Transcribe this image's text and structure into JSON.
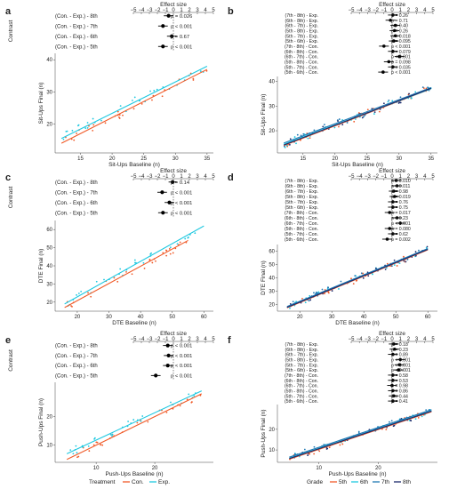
{
  "figure": {
    "colors": {
      "orange": "#f05a28",
      "cyan": "#1ec8e0",
      "blue": "#1f78b4",
      "navy": "#1b2a6b",
      "black": "#000000"
    }
  },
  "chart_data": [
    {
      "id": "a",
      "type": "scatter",
      "letter": "a",
      "forest": {
        "title": "Effect size",
        "ylabel": "Contrast",
        "xlim": [
          -5,
          5
        ],
        "ticks": [
          "−5",
          "−4",
          "−3",
          "−2",
          "−1",
          "0",
          "1",
          "2",
          "3",
          "4",
          "5"
        ],
        "rows": [
          {
            "label": "(Con. - Exp.) - 8th",
            "est": -0.6,
            "lo": -1.2,
            "hi": 0.0,
            "p": "p =  0.026"
          },
          {
            "label": "(Con. - Exp.) - 7th",
            "est": -1.3,
            "lo": -1.9,
            "hi": -0.7,
            "p": "p < 0.001"
          },
          {
            "label": "(Con. - Exp.) - 6th",
            "est": -0.2,
            "lo": -0.8,
            "hi": 0.4,
            "p": "p =  0.67"
          },
          {
            "label": "(Con. - Exp.) - 5th",
            "est": -1.3,
            "lo": -1.9,
            "hi": -0.7,
            "p": "p < 0.001"
          }
        ]
      },
      "scatter": {
        "xlabel": "Sit-Ups Baseline (n)",
        "ylabel": "Sit-Ups Final (n)",
        "xlim": [
          11,
          36
        ],
        "ylim": [
          11,
          42
        ],
        "xticks": [
          "15",
          "20",
          "25",
          "30",
          "35"
        ],
        "yticks": [
          "20",
          "30",
          "40"
        ],
        "series": [
          {
            "color": "orange",
            "line": [
              [
                12,
                14
              ],
              [
                35,
                37
              ]
            ]
          },
          {
            "color": "cyan",
            "line": [
              [
                12,
                15.5
              ],
              [
                35,
                38
              ]
            ]
          }
        ]
      }
    },
    {
      "id": "b",
      "type": "scatter",
      "letter": "b",
      "forest": {
        "title": "Effect size",
        "xlim": [
          -5,
          5
        ],
        "ticks": [
          "−5",
          "−4",
          "−3",
          "−2",
          "−1",
          "0",
          "1",
          "2",
          "3",
          "4",
          "5"
        ],
        "rows": [
          {
            "label": "(7th - 8th) - Exp.",
            "est": 0.1,
            "lo": -0.5,
            "hi": 0.7,
            "p": "p = 0.26"
          },
          {
            "label": "(6th - 8th) - Exp.",
            "est": -0.2,
            "lo": -0.8,
            "hi": 0.4,
            "p": "p = 0.71"
          },
          {
            "label": "(6th - 7th) - Exp.",
            "est": 0.4,
            "lo": -0.2,
            "hi": 1.0,
            "p": "p = 0.40"
          },
          {
            "label": "(5th - 8th) - Exp.",
            "est": 0.3,
            "lo": -0.3,
            "hi": 0.9,
            "p": "p = 0.26"
          },
          {
            "label": "(5th - 7th) - Exp.",
            "est": 0.4,
            "lo": -0.2,
            "hi": 1.0,
            "p": "p = 0.018"
          },
          {
            "label": "(5th - 6th) - Exp.",
            "est": 0.2,
            "lo": -0.4,
            "hi": 0.8,
            "p": "p = 0.095"
          },
          {
            "label": "(7th - 8th) - Con.",
            "est": -1.0,
            "lo": -1.6,
            "hi": -0.4,
            "p": "p < 0.001"
          },
          {
            "label": "(6th - 8th) - Con.",
            "est": 0.1,
            "lo": -0.5,
            "hi": 0.7,
            "p": "p = 0.079"
          },
          {
            "label": "(6th - 7th) - Con.",
            "est": 0.9,
            "lo": 0.3,
            "hi": 1.5,
            "p": "p < 0.001"
          },
          {
            "label": "(5th - 8th) - Con.",
            "est": -0.4,
            "lo": -1.0,
            "hi": 0.2,
            "p": "p = 0.098"
          },
          {
            "label": "(5th - 7th) - Con.",
            "est": 0.1,
            "lo": -0.5,
            "hi": 0.7,
            "p": "p = 0.035"
          },
          {
            "label": "(5th - 6th) - Con.",
            "est": -1.1,
            "lo": -1.7,
            "hi": -0.5,
            "p": "p < 0.001"
          }
        ]
      },
      "scatter": {
        "xlabel": "Sit-Ups Baseline (n)",
        "ylabel": "Sit-Ups Final (n)",
        "xlim": [
          11,
          36
        ],
        "ylim": [
          11,
          42
        ],
        "xticks": [
          "15",
          "20",
          "25",
          "30",
          "35"
        ],
        "yticks": [
          "20",
          "30",
          "40"
        ],
        "series": [
          {
            "color": "orange",
            "line": [
              [
                12,
                14
              ],
              [
                35,
                37
              ]
            ]
          },
          {
            "color": "cyan",
            "line": [
              [
                12,
                14.5
              ],
              [
                35,
                37
              ]
            ]
          },
          {
            "color": "blue",
            "line": [
              [
                12,
                15
              ],
              [
                35,
                37.5
              ]
            ]
          },
          {
            "color": "navy",
            "line": [
              [
                12,
                14.2
              ],
              [
                35,
                37.2
              ]
            ]
          }
        ]
      }
    },
    {
      "id": "c",
      "type": "scatter",
      "letter": "c",
      "forest": {
        "title": "Effect size",
        "ylabel": "Contrast",
        "xlim": [
          -5,
          5
        ],
        "ticks": [
          "−5",
          "−4",
          "−3",
          "−2",
          "−1",
          "0",
          "1",
          "2",
          "3",
          "4",
          "5"
        ],
        "rows": [
          {
            "label": "(Con. - Exp.) - 8th",
            "est": -0.1,
            "lo": -0.6,
            "hi": 0.4,
            "p": "p =  0.14"
          },
          {
            "label": "(Con. - Exp.) - 7th",
            "est": -1.4,
            "lo": -2.0,
            "hi": -0.8,
            "p": "p < 0.001"
          },
          {
            "label": "(Con. - Exp.) - 6th",
            "est": -0.5,
            "lo": -1.1,
            "hi": 0.1,
            "p": "p < 0.001"
          },
          {
            "label": "(Con. - Exp.) - 5th",
            "est": -1.3,
            "lo": -1.9,
            "hi": -0.7,
            "p": "p < 0.001"
          }
        ]
      },
      "scatter": {
        "xlabel": "DTE Baseline (n)",
        "ylabel": "DTE Final (n)",
        "xlim": [
          13,
          63
        ],
        "ylim": [
          15,
          65
        ],
        "xticks": [
          "20",
          "30",
          "40",
          "50",
          "60"
        ],
        "yticks": [
          "20",
          "30",
          "40",
          "50",
          "60"
        ],
        "series": [
          {
            "color": "orange",
            "line": [
              [
                16,
                17
              ],
              [
                55,
                54
              ]
            ]
          },
          {
            "color": "cyan",
            "line": [
              [
                16,
                19
              ],
              [
                60,
                62
              ]
            ]
          }
        ]
      }
    },
    {
      "id": "d",
      "type": "scatter",
      "letter": "d",
      "forest": {
        "title": "Effect size",
        "xlim": [
          -5,
          5
        ],
        "ticks": [
          "−5",
          "−4",
          "−3",
          "−2",
          "−1",
          "0",
          "1",
          "2",
          "3",
          "4",
          "5"
        ],
        "rows": [
          {
            "label": "(7th - 8th) - Exp.",
            "est": 0.5,
            "lo": -0.1,
            "hi": 1.1,
            "p": "p = 0.010"
          },
          {
            "label": "(6th - 8th) - Exp.",
            "est": 0.6,
            "lo": 0.0,
            "hi": 1.2,
            "p": "p = 0.011"
          },
          {
            "label": "(6th - 7th) - Exp.",
            "est": 0.2,
            "lo": -0.4,
            "hi": 0.8,
            "p": "p = 0.98"
          },
          {
            "label": "(5th - 8th) - Exp.",
            "est": 0.3,
            "lo": -0.3,
            "hi": 0.9,
            "p": "p = 0.019"
          },
          {
            "label": "(5th - 7th) - Exp.",
            "est": 0.1,
            "lo": -0.5,
            "hi": 0.7,
            "p": "p = 0.76"
          },
          {
            "label": "(5th - 6th) - Exp.",
            "est": 0.1,
            "lo": -0.5,
            "hi": 0.7,
            "p": "p = 0.75"
          },
          {
            "label": "(7th - 8th) - Con.",
            "est": -0.3,
            "lo": -0.9,
            "hi": 0.3,
            "p": "p = 0.017"
          },
          {
            "label": "(6th - 8th) - Con.",
            "est": 0.6,
            "lo": 0.0,
            "hi": 1.2,
            "p": "p = 0.23"
          },
          {
            "label": "(6th - 7th) - Con.",
            "est": 1.0,
            "lo": 0.4,
            "hi": 1.6,
            "p": "p < 0.001"
          },
          {
            "label": "(5th - 8th) - Con.",
            "est": -0.3,
            "lo": -0.9,
            "hi": 0.3,
            "p": "p = 0.080"
          },
          {
            "label": "(5th - 7th) - Con.",
            "est": 0.1,
            "lo": -0.5,
            "hi": 0.7,
            "p": "p = 0.62"
          },
          {
            "label": "(5th - 6th) - Con.",
            "est": -0.6,
            "lo": -1.2,
            "hi": 0.0,
            "p": "p = 0.002"
          }
        ]
      },
      "scatter": {
        "xlabel": "DTE Baseline (n)",
        "ylabel": "DTE Final (n)",
        "xlim": [
          13,
          63
        ],
        "ylim": [
          15,
          65
        ],
        "xticks": [
          "20",
          "30",
          "40",
          "50",
          "60"
        ],
        "yticks": [
          "20",
          "30",
          "40",
          "50",
          "60"
        ],
        "series": [
          {
            "color": "orange",
            "line": [
              [
                16,
                17.5
              ],
              [
                60,
                61
              ]
            ]
          },
          {
            "color": "cyan",
            "line": [
              [
                16,
                18
              ],
              [
                60,
                61.5
              ]
            ]
          },
          {
            "color": "blue",
            "line": [
              [
                16,
                18.5
              ],
              [
                60,
                62
              ]
            ]
          },
          {
            "color": "navy",
            "line": [
              [
                16,
                17.8
              ],
              [
                60,
                61.3
              ]
            ]
          }
        ]
      }
    },
    {
      "id": "e",
      "type": "scatter",
      "letter": "e",
      "forest": {
        "title": "Effect size",
        "ylabel": "Contrast",
        "xlim": [
          -5,
          5
        ],
        "ticks": [
          "−5",
          "−4",
          "−3",
          "−2",
          "−1",
          "0",
          "1",
          "2",
          "3",
          "4",
          "5"
        ],
        "rows": [
          {
            "label": "(Con. - Exp.) - 8th",
            "est": -0.7,
            "lo": -1.3,
            "hi": -0.1,
            "p": "p < 0.001"
          },
          {
            "label": "(Con. - Exp.) - 7th",
            "est": -0.6,
            "lo": -1.2,
            "hi": 0.0,
            "p": "p < 0.001"
          },
          {
            "label": "(Con. - Exp.) - 6th",
            "est": -0.7,
            "lo": -1.3,
            "hi": -0.1,
            "p": "p < 0.001"
          },
          {
            "label": "(Con. - Exp.) - 5th",
            "est": -2.2,
            "lo": -2.8,
            "hi": -1.6,
            "p": "p < 0.001"
          }
        ]
      },
      "scatter": {
        "xlabel": "Push-Ups Baseline (n)",
        "ylabel": "Push-Ups Final (n)",
        "xlim": [
          3,
          30
        ],
        "ylim": [
          4,
          32
        ],
        "xticks": [
          "10",
          "20"
        ],
        "yticks": [
          "10",
          "20"
        ],
        "series": [
          {
            "color": "orange",
            "line": [
              [
                5,
                5
              ],
              [
                28,
                28
              ]
            ]
          },
          {
            "color": "cyan",
            "line": [
              [
                5,
                7
              ],
              [
                28,
                29
              ]
            ]
          }
        ]
      }
    },
    {
      "id": "f",
      "type": "scatter",
      "letter": "f",
      "forest": {
        "title": "Effect size",
        "xlim": [
          -5,
          5
        ],
        "ticks": [
          "−5",
          "−4",
          "−3",
          "−2",
          "−1",
          "0",
          "1",
          "2",
          "3",
          "4",
          "5"
        ],
        "rows": [
          {
            "label": "(7th - 8th) - Exp.",
            "est": 0.2,
            "lo": -0.4,
            "hi": 0.8,
            "p": "p = 0.18"
          },
          {
            "label": "(6th - 8th) - Exp.",
            "est": 0.3,
            "lo": -0.3,
            "hi": 0.9,
            "p": "p = 0.23"
          },
          {
            "label": "(6th - 7th) - Exp.",
            "est": 0.1,
            "lo": -0.5,
            "hi": 0.7,
            "p": "p = 0.89"
          },
          {
            "label": "(5th - 8th) - Exp.",
            "est": 1.0,
            "lo": 0.4,
            "hi": 1.6,
            "p": "p < 0.001"
          },
          {
            "label": "(5th - 7th) - Exp.",
            "est": 0.9,
            "lo": 0.3,
            "hi": 1.5,
            "p": "p < 0.001"
          },
          {
            "label": "(5th - 6th) - Exp.",
            "est": 0.8,
            "lo": 0.2,
            "hi": 1.4,
            "p": "p < 0.001"
          },
          {
            "label": "(7th - 8th) - Con.",
            "est": 0.1,
            "lo": -0.5,
            "hi": 0.7,
            "p": "p = 0.58"
          },
          {
            "label": "(6th - 8th) - Con.",
            "est": 0.1,
            "lo": -0.5,
            "hi": 0.7,
            "p": "p = 0.53"
          },
          {
            "label": "(6th - 7th) - Con.",
            "est": 0.0,
            "lo": -0.6,
            "hi": 0.6,
            "p": "p = 0.98"
          },
          {
            "label": "(5th - 8th) - Con.",
            "est": 0.1,
            "lo": -0.5,
            "hi": 0.7,
            "p": "p = 0.86"
          },
          {
            "label": "(5th - 7th) - Con.",
            "est": 0.2,
            "lo": -0.4,
            "hi": 0.8,
            "p": "p = 0.44"
          },
          {
            "label": "(5th - 6th) - Con.",
            "est": 0.1,
            "lo": -0.5,
            "hi": 0.7,
            "p": "p = 0.41"
          }
        ]
      },
      "scatter": {
        "xlabel": "Push-Ups Baseline (n)",
        "ylabel": "Push-Ups Final (n)",
        "xlim": [
          3,
          30
        ],
        "ylim": [
          4,
          32
        ],
        "xticks": [
          "10",
          "20"
        ],
        "yticks": [
          "10",
          "20"
        ],
        "series": [
          {
            "color": "orange",
            "line": [
              [
                5,
                5.5
              ],
              [
                29,
                28.5
              ]
            ]
          },
          {
            "color": "cyan",
            "line": [
              [
                5,
                6
              ],
              [
                29,
                29
              ]
            ]
          },
          {
            "color": "blue",
            "line": [
              [
                5,
                6.5
              ],
              [
                29,
                29.5
              ]
            ]
          },
          {
            "color": "navy",
            "line": [
              [
                5,
                5.8
              ],
              [
                29,
                28.8
              ]
            ]
          }
        ]
      }
    }
  ],
  "legends": {
    "left": {
      "title": "Treatment",
      "items": [
        {
          "label": "Con.",
          "color": "orange"
        },
        {
          "label": "Exp.",
          "color": "cyan"
        }
      ]
    },
    "right": {
      "title": "Grade",
      "items": [
        {
          "label": "5th",
          "color": "orange"
        },
        {
          "label": "6th",
          "color": "cyan"
        },
        {
          "label": "7th",
          "color": "blue"
        },
        {
          "label": "8th",
          "color": "navy"
        }
      ]
    }
  }
}
